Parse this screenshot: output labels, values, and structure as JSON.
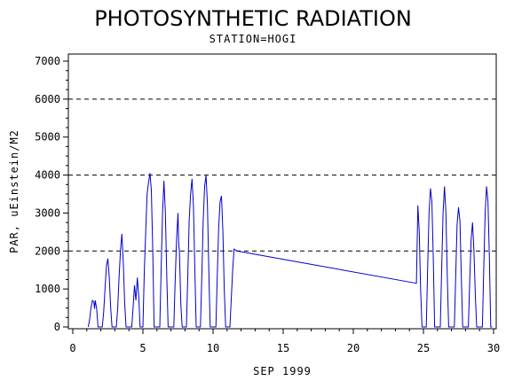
{
  "chart_data": {
    "type": "line",
    "title": "PHOTOSYNTHETIC RADIATION",
    "subtitle": "STATION=HOGI",
    "xlabel": "SEP 1999",
    "ylabel": "PAR, uEinstein/M2",
    "xlim": [
      0,
      30
    ],
    "ylim": [
      0,
      7000
    ],
    "x_ticks": [
      0,
      5,
      10,
      15,
      20,
      25,
      30
    ],
    "y_ticks": [
      0,
      1000,
      2000,
      3000,
      4000,
      5000,
      6000,
      7000
    ],
    "reference_lines": [
      2000,
      4000,
      6000
    ],
    "line_color": "#0000cc",
    "grid": false,
    "legend": "none",
    "series": [
      {
        "values": [
          [
            1.1,
            0
          ],
          [
            1.2,
            200
          ],
          [
            1.3,
            500
          ],
          [
            1.4,
            700
          ],
          [
            1.5,
            660
          ],
          [
            1.55,
            480
          ],
          [
            1.6,
            700
          ],
          [
            1.7,
            480
          ],
          [
            1.8,
            0
          ],
          [
            2.1,
            0
          ],
          [
            2.2,
            400
          ],
          [
            2.3,
            1000
          ],
          [
            2.4,
            1600
          ],
          [
            2.5,
            1800
          ],
          [
            2.6,
            1300
          ],
          [
            2.7,
            500
          ],
          [
            2.8,
            0
          ],
          [
            3.1,
            0
          ],
          [
            3.2,
            500
          ],
          [
            3.3,
            1300
          ],
          [
            3.4,
            2000
          ],
          [
            3.5,
            2450
          ],
          [
            3.6,
            1700
          ],
          [
            3.7,
            600
          ],
          [
            3.8,
            0
          ],
          [
            4.2,
            0
          ],
          [
            4.3,
            500
          ],
          [
            4.4,
            1100
          ],
          [
            4.5,
            700
          ],
          [
            4.6,
            1300
          ],
          [
            4.7,
            800
          ],
          [
            4.8,
            0
          ],
          [
            5.0,
            0
          ],
          [
            5.1,
            1500
          ],
          [
            5.3,
            3500
          ],
          [
            5.4,
            3800
          ],
          [
            5.5,
            4050
          ],
          [
            5.6,
            3600
          ],
          [
            5.7,
            2000
          ],
          [
            5.8,
            0
          ],
          [
            6.2,
            0
          ],
          [
            6.3,
            1500
          ],
          [
            6.4,
            3000
          ],
          [
            6.5,
            3850
          ],
          [
            6.6,
            3000
          ],
          [
            6.7,
            1300
          ],
          [
            6.8,
            0
          ],
          [
            7.0,
            0
          ],
          [
            7.2,
            0
          ],
          [
            7.3,
            1200
          ],
          [
            7.4,
            2300
          ],
          [
            7.5,
            3000
          ],
          [
            7.55,
            2200
          ],
          [
            7.6,
            2000
          ],
          [
            7.7,
            600
          ],
          [
            7.8,
            0
          ],
          [
            8.1,
            0
          ],
          [
            8.2,
            1400
          ],
          [
            8.3,
            2800
          ],
          [
            8.4,
            3500
          ],
          [
            8.5,
            3900
          ],
          [
            8.6,
            3200
          ],
          [
            8.7,
            1500
          ],
          [
            8.8,
            0
          ],
          [
            9.1,
            0
          ],
          [
            9.2,
            1400
          ],
          [
            9.3,
            2800
          ],
          [
            9.4,
            3700
          ],
          [
            9.5,
            4000
          ],
          [
            9.6,
            3200
          ],
          [
            9.7,
            1400
          ],
          [
            9.8,
            0
          ],
          [
            10.2,
            0
          ],
          [
            10.3,
            1300
          ],
          [
            10.4,
            2600
          ],
          [
            10.5,
            3300
          ],
          [
            10.6,
            3450
          ],
          [
            10.7,
            2500
          ],
          [
            10.8,
            1000
          ],
          [
            10.9,
            0
          ],
          [
            11.2,
            0
          ],
          [
            11.4,
            1500
          ],
          [
            11.5,
            2050
          ],
          [
            11.7,
            2000
          ],
          [
            24.5,
            1150
          ],
          [
            24.6,
            3200
          ],
          [
            24.7,
            2500
          ],
          [
            24.8,
            1000
          ],
          [
            24.9,
            0
          ],
          [
            25.2,
            0
          ],
          [
            25.3,
            1500
          ],
          [
            25.4,
            3000
          ],
          [
            25.5,
            3650
          ],
          [
            25.6,
            3300
          ],
          [
            25.7,
            1800
          ],
          [
            25.8,
            0
          ],
          [
            26.2,
            0
          ],
          [
            26.3,
            1500
          ],
          [
            26.4,
            3000
          ],
          [
            26.5,
            3700
          ],
          [
            26.6,
            3000
          ],
          [
            26.7,
            1300
          ],
          [
            26.8,
            0
          ],
          [
            27.2,
            0
          ],
          [
            27.3,
            1300
          ],
          [
            27.4,
            2700
          ],
          [
            27.5,
            3150
          ],
          [
            27.6,
            2800
          ],
          [
            27.7,
            1300
          ],
          [
            27.8,
            0
          ],
          [
            28.2,
            0
          ],
          [
            28.3,
            1200
          ],
          [
            28.4,
            2300
          ],
          [
            28.5,
            2750
          ],
          [
            28.6,
            2000
          ],
          [
            28.7,
            800
          ],
          [
            28.8,
            0
          ],
          [
            29.2,
            0
          ],
          [
            29.3,
            1500
          ],
          [
            29.4,
            3000
          ],
          [
            29.5,
            3700
          ],
          [
            29.6,
            3300
          ],
          [
            29.7,
            1800
          ],
          [
            29.8,
            0
          ],
          [
            29.9,
            0
          ]
        ]
      }
    ]
  }
}
